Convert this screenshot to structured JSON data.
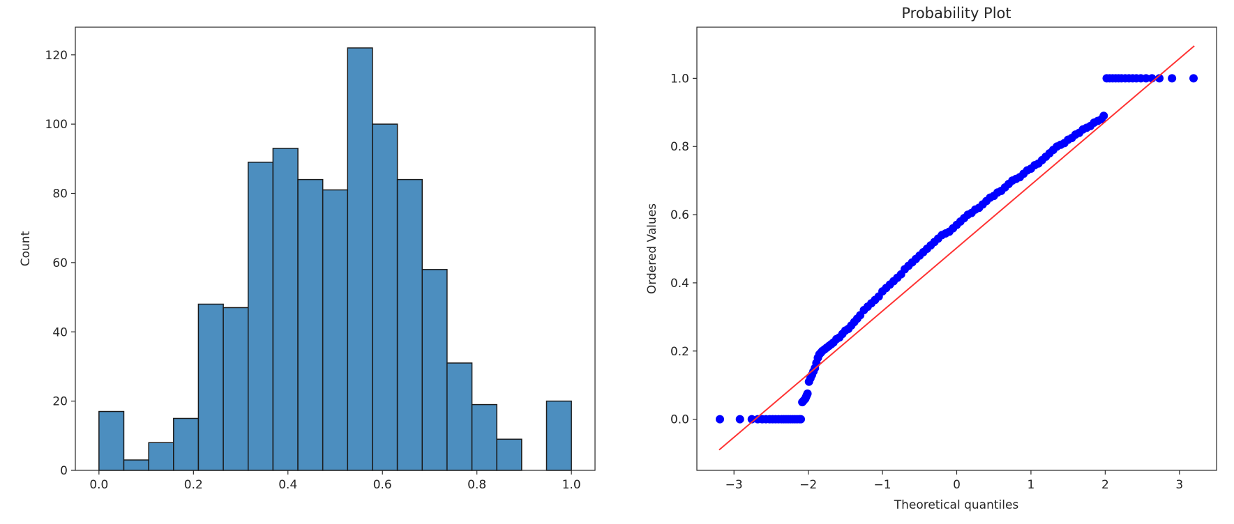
{
  "chart_data": [
    {
      "type": "bar",
      "subtype": "histogram",
      "title": "",
      "xlabel": "",
      "ylabel": "Count",
      "xlim": [
        -0.05,
        1.05
      ],
      "ylim": [
        0,
        128
      ],
      "xticks": [
        0.0,
        0.2,
        0.4,
        0.6,
        0.8,
        1.0
      ],
      "xtick_labels": [
        "0.0",
        "0.2",
        "0.4",
        "0.6",
        "0.8",
        "1.0"
      ],
      "yticks": [
        0,
        20,
        40,
        60,
        80,
        100,
        120
      ],
      "ytick_labels": [
        "0",
        "20",
        "40",
        "60",
        "80",
        "100",
        "120"
      ],
      "bin_edges": [
        0.0,
        0.0526,
        0.1053,
        0.1579,
        0.2105,
        0.2632,
        0.3158,
        0.3684,
        0.4211,
        0.4737,
        0.5263,
        0.5789,
        0.6316,
        0.6842,
        0.7368,
        0.7895,
        0.8421,
        0.8947,
        0.9474,
        1.0
      ],
      "values": [
        17,
        3,
        8,
        15,
        48,
        47,
        89,
        93,
        84,
        81,
        122,
        100,
        84,
        58,
        31,
        19,
        9,
        0,
        20
      ],
      "bar_color": "#4c8ebf",
      "edge_color": "#1a1a1a",
      "grid": false
    },
    {
      "type": "scatter",
      "title": "Probability Plot",
      "xlabel": "Theoretical quantiles",
      "ylabel": "Ordered Values",
      "xlim": [
        -3.5,
        3.5
      ],
      "ylim": [
        -0.15,
        1.15
      ],
      "xticks": [
        -3,
        -2,
        -1,
        0,
        1,
        2,
        3
      ],
      "xtick_labels": [
        "−3",
        "−2",
        "−1",
        "0",
        "1",
        "2",
        "3"
      ],
      "yticks": [
        0.0,
        0.2,
        0.4,
        0.6,
        0.8,
        1.0
      ],
      "ytick_labels": [
        "0.0",
        "0.2",
        "0.4",
        "0.6",
        "0.8",
        "1.0"
      ],
      "marker_color": "#0000ff",
      "line_color": "#ff3333",
      "grid": false,
      "fit_line": {
        "x": [
          -3.2,
          3.2
        ],
        "y": [
          -0.09,
          1.095
        ]
      },
      "series": [
        {
          "x": [
            -3.19,
            -2.92,
            -2.76,
            -2.68,
            -2.62,
            -2.57,
            -2.52,
            -2.48,
            -2.44,
            -2.4,
            -2.36,
            -2.33,
            -2.3,
            -2.27,
            -2.24,
            -2.21,
            -2.18,
            -2.15,
            -2.12,
            -2.1,
            -2.08,
            -2.06,
            -2.04,
            -2.03,
            -2.02,
            -2.01,
            -1.99,
            -1.97,
            -1.95,
            -1.93,
            -1.91,
            -1.89,
            -1.87,
            -1.85,
            -1.83,
            -1.81,
            -1.78,
            -1.75,
            -1.72,
            -1.69,
            -1.66,
            -1.62,
            -1.58,
            -1.54,
            -1.5,
            -1.46,
            -1.42,
            -1.38,
            -1.34,
            -1.3,
            -1.25,
            -1.2,
            -1.15,
            -1.1,
            -1.05,
            -1.0,
            -0.95,
            -0.9,
            -0.85,
            -0.8,
            -0.75,
            -0.7,
            -0.65,
            -0.6,
            -0.55,
            -0.5,
            -0.45,
            -0.4,
            -0.35,
            -0.3,
            -0.25,
            -0.2,
            -0.15,
            -0.1,
            -0.05,
            0.0,
            0.05,
            0.1,
            0.15,
            0.2,
            0.25,
            0.3,
            0.35,
            0.4,
            0.45,
            0.5,
            0.55,
            0.6,
            0.65,
            0.7,
            0.75,
            0.8,
            0.85,
            0.9,
            0.95,
            1.0,
            1.05,
            1.1,
            1.15,
            1.2,
            1.25,
            1.3,
            1.35,
            1.4,
            1.45,
            1.5,
            1.55,
            1.6,
            1.65,
            1.7,
            1.75,
            1.8,
            1.85,
            1.9,
            1.95,
            1.98,
            2.02,
            2.06,
            2.1,
            2.14,
            2.18,
            2.22,
            2.27,
            2.32,
            2.37,
            2.42,
            2.48,
            2.55,
            2.63,
            2.73,
            2.9,
            3.19
          ],
          "y": [
            0.0,
            0.0,
            0.0,
            0.0,
            0.0,
            0.0,
            0.0,
            0.0,
            0.0,
            0.0,
            0.0,
            0.0,
            0.0,
            0.0,
            0.0,
            0.0,
            0.0,
            0.0,
            0.0,
            0.0,
            0.05,
            0.055,
            0.06,
            0.065,
            0.07,
            0.075,
            0.11,
            0.12,
            0.13,
            0.14,
            0.15,
            0.165,
            0.18,
            0.19,
            0.195,
            0.2,
            0.205,
            0.21,
            0.215,
            0.22,
            0.225,
            0.235,
            0.24,
            0.25,
            0.26,
            0.265,
            0.275,
            0.285,
            0.295,
            0.305,
            0.32,
            0.33,
            0.34,
            0.35,
            0.36,
            0.375,
            0.385,
            0.395,
            0.405,
            0.415,
            0.425,
            0.44,
            0.45,
            0.46,
            0.47,
            0.48,
            0.49,
            0.5,
            0.51,
            0.52,
            0.53,
            0.54,
            0.545,
            0.55,
            0.56,
            0.57,
            0.58,
            0.59,
            0.6,
            0.605,
            0.615,
            0.62,
            0.63,
            0.64,
            0.65,
            0.655,
            0.665,
            0.67,
            0.68,
            0.69,
            0.7,
            0.705,
            0.71,
            0.72,
            0.73,
            0.735,
            0.745,
            0.75,
            0.76,
            0.77,
            0.78,
            0.79,
            0.8,
            0.805,
            0.81,
            0.82,
            0.825,
            0.835,
            0.84,
            0.85,
            0.855,
            0.86,
            0.87,
            0.875,
            0.88,
            0.89,
            1.0,
            1.0,
            1.0,
            1.0,
            1.0,
            1.0,
            1.0,
            1.0,
            1.0,
            1.0,
            1.0,
            1.0,
            1.0,
            1.0,
            1.0,
            1.0
          ]
        }
      ]
    }
  ]
}
